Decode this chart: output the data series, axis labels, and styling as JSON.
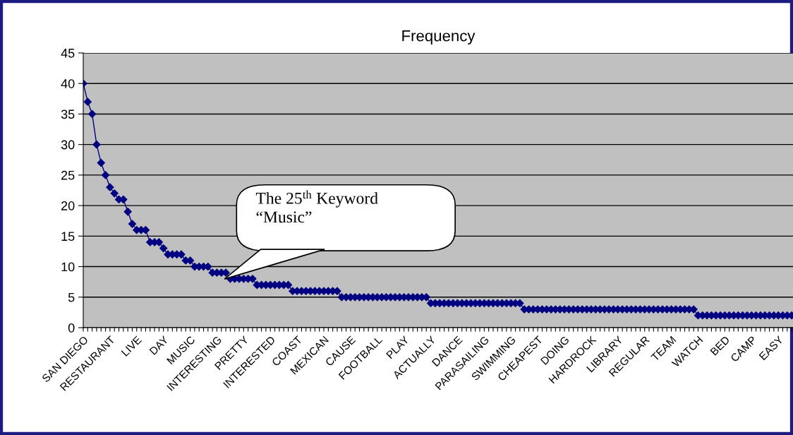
{
  "chart_data": {
    "type": "line",
    "title": "Frequency",
    "categories": [
      "SAN DIEGO",
      null,
      null,
      null,
      null,
      null,
      "RESTAURANT",
      null,
      null,
      null,
      null,
      null,
      "LIVE",
      null,
      null,
      null,
      null,
      null,
      "DAY",
      null,
      null,
      null,
      null,
      null,
      "MUSIC",
      null,
      null,
      null,
      null,
      null,
      "INTERESTING",
      null,
      null,
      null,
      null,
      null,
      "PRETTY",
      null,
      null,
      null,
      null,
      null,
      "INTERESTED",
      null,
      null,
      null,
      null,
      null,
      "COAST",
      null,
      null,
      null,
      null,
      null,
      "MEXICAN",
      null,
      null,
      null,
      null,
      null,
      "CAUSE",
      null,
      null,
      null,
      null,
      null,
      "FOOTBALL",
      null,
      null,
      null,
      null,
      null,
      "PLAY",
      null,
      null,
      null,
      null,
      null,
      "ACTUALLY",
      null,
      null,
      null,
      null,
      null,
      "DANCE",
      null,
      null,
      null,
      null,
      null,
      "PARASAILING",
      null,
      null,
      null,
      null,
      null,
      "SWIMMING",
      null,
      null,
      null,
      null,
      null,
      "CHEAPEST",
      null,
      null,
      null,
      null,
      null,
      "DOING",
      null,
      null,
      null,
      null,
      null,
      "HARDROCK",
      null,
      null,
      null,
      null,
      null,
      "LIBRARY",
      null,
      null,
      null,
      null,
      null,
      "REGULAR",
      null,
      null,
      null,
      null,
      null,
      "TEAM",
      null,
      null,
      null,
      null,
      null,
      "WATCH",
      null,
      null,
      null,
      null,
      null,
      "BED",
      null,
      null,
      null,
      null,
      null,
      "CAMP",
      null,
      null,
      null,
      null,
      null,
      "EASY",
      null,
      null,
      null
    ],
    "series": [
      {
        "color": "#000080",
        "values": [
          40,
          37,
          35,
          30,
          27,
          25,
          23,
          22,
          21,
          21,
          19,
          17,
          16,
          16,
          16,
          14,
          14,
          14,
          13,
          12,
          12,
          12,
          12,
          11,
          11,
          10,
          10,
          10,
          10,
          9,
          9,
          9,
          9,
          8,
          8,
          8,
          8,
          8,
          8,
          7,
          7,
          7,
          7,
          7,
          7,
          7,
          7,
          6,
          6,
          6,
          6,
          6,
          6,
          6,
          6,
          6,
          6,
          6,
          5,
          5,
          5,
          5,
          5,
          5,
          5,
          5,
          5,
          5,
          5,
          5,
          5,
          5,
          5,
          5,
          5,
          5,
          5,
          5,
          4,
          4,
          4,
          4,
          4,
          4,
          4,
          4,
          4,
          4,
          4,
          4,
          4,
          4,
          4,
          4,
          4,
          4,
          4,
          4,
          4,
          3,
          3,
          3,
          3,
          3,
          3,
          3,
          3,
          3,
          3,
          3,
          3,
          3,
          3,
          3,
          3,
          3,
          3,
          3,
          3,
          3,
          3,
          3,
          3,
          3,
          3,
          3,
          3,
          3,
          3,
          3,
          3,
          3,
          3,
          3,
          3,
          3,
          3,
          3,
          2,
          2,
          2,
          2,
          2,
          2,
          2,
          2,
          2,
          2,
          2,
          2,
          2,
          2,
          2,
          2,
          2,
          2,
          2,
          2,
          2,
          2
        ]
      }
    ],
    "ylim": [
      0,
      45
    ],
    "yticks": [
      0,
      5,
      10,
      15,
      20,
      25,
      30,
      35,
      40,
      45
    ],
    "grid": "y",
    "marker": "diamond",
    "line_style": "solid",
    "annotations": [
      "The 25$^{th}$ Keyword\n“Music”"
    ]
  }
}
